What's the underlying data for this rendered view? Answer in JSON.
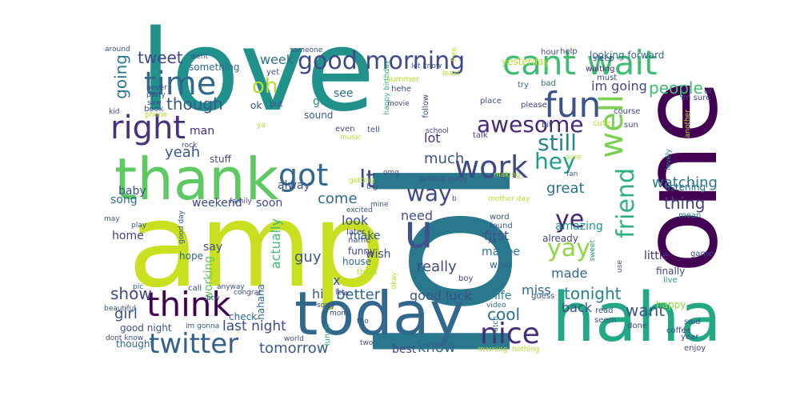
{
  "words": [
    {
      "text": "lol",
      "color": "#2a788e",
      "rot": "v"
    },
    {
      "text": "love",
      "color": "#21918c",
      "rot": "h"
    },
    {
      "text": "amp",
      "color": "#c8e020",
      "rot": "h"
    },
    {
      "text": "one",
      "color": "#440154",
      "rot": "v"
    },
    {
      "text": "haha",
      "color": "#22a884",
      "rot": "h"
    },
    {
      "text": "today",
      "color": "#31688e",
      "rot": "h"
    },
    {
      "text": "thank",
      "color": "#5ec962",
      "rot": "h"
    },
    {
      "text": "cant wait",
      "color": "#3fbc73",
      "rot": "h"
    },
    {
      "text": "u",
      "color": "#3b528b",
      "rot": "h"
    },
    {
      "text": "fun",
      "color": "#3b528b",
      "rot": "h"
    },
    {
      "text": "time",
      "color": "#31688e",
      "rot": "h"
    },
    {
      "text": "right",
      "color": "#46327e",
      "rot": "h"
    },
    {
      "text": "think",
      "color": "#440154",
      "rot": "h"
    },
    {
      "text": "well",
      "color": "#7ad151",
      "rot": "v"
    },
    {
      "text": "work",
      "color": "#3e4989",
      "rot": "h"
    },
    {
      "text": "good morning",
      "color": "#3e4989",
      "rot": "h"
    },
    {
      "text": "got",
      "color": "#31688e",
      "rot": "h"
    },
    {
      "text": "twitter",
      "color": "#355f8d",
      "rot": "h"
    },
    {
      "text": "awesome",
      "color": "#482878",
      "rot": "h"
    },
    {
      "text": "friend",
      "color": "#2db27d",
      "rot": "v"
    },
    {
      "text": "nice",
      "color": "#472d7b",
      "rot": "h"
    },
    {
      "text": "yay",
      "color": "#8fd744",
      "rot": "h"
    },
    {
      "text": "hey",
      "color": "#1f9e89",
      "rot": "h"
    },
    {
      "text": "still",
      "color": "#26828e",
      "rot": "h"
    },
    {
      "text": "way",
      "color": "#3e4989",
      "rot": "h"
    },
    {
      "text": "lt",
      "color": "#3e4989",
      "rot": "h"
    },
    {
      "text": "ye",
      "color": "#482475",
      "rot": "h"
    },
    {
      "text": "oh",
      "color": "#b5de2b",
      "rot": "h"
    },
    {
      "text": "tweet",
      "color": "#3e4989",
      "rot": "h"
    },
    {
      "text": "though",
      "color": "#38598c",
      "rot": "h"
    },
    {
      "text": "people",
      "color": "#3fbc73",
      "rot": "h"
    },
    {
      "text": "going",
      "color": "#2a788e",
      "rot": "v"
    },
    {
      "text": "show",
      "color": "#3e4989",
      "rot": "h"
    },
    {
      "text": "tomorrow",
      "color": "#38598c",
      "rot": "h"
    },
    {
      "text": "last night",
      "color": "#3e4989",
      "rot": "h"
    },
    {
      "text": "cool",
      "color": "#2c718e",
      "rot": "h"
    },
    {
      "text": "tonight",
      "color": "#26828e",
      "rot": "h"
    },
    {
      "text": "know",
      "color": "#31688e",
      "rot": "h"
    },
    {
      "text": "want",
      "color": "#3b528b",
      "rot": "h"
    },
    {
      "text": "great",
      "color": "#2c718e",
      "rot": "h"
    },
    {
      "text": "come",
      "color": "#31688e",
      "rot": "h"
    },
    {
      "text": "guy",
      "color": "#3b528b",
      "rot": "h"
    },
    {
      "text": "thing",
      "color": "#424086",
      "rot": "h"
    },
    {
      "text": "watching",
      "color": "#2a788e",
      "rot": "h"
    },
    {
      "text": "girl",
      "color": "#3b528b",
      "rot": "h"
    },
    {
      "text": "im going",
      "color": "#3e4989",
      "rot": "h"
    },
    {
      "text": "yeah",
      "color": "#38598c",
      "rot": "h"
    },
    {
      "text": "look",
      "color": "#3b528b",
      "rot": "h"
    },
    {
      "text": "need",
      "color": "#3b528b",
      "rot": "h"
    },
    {
      "text": "amazing",
      "color": "#21918c",
      "rot": "h"
    },
    {
      "text": "weekend",
      "color": "#3e4989",
      "rot": "h"
    },
    {
      "text": "good luck",
      "color": "#3b528b",
      "rot": "h"
    },
    {
      "text": "actually",
      "color": "#3fbc73",
      "rot": "v"
    },
    {
      "text": "much",
      "color": "#3b528b",
      "rot": "h"
    },
    {
      "text": "really",
      "color": "#3e4989",
      "rot": "h"
    },
    {
      "text": "better",
      "color": "#31688e",
      "rot": "h"
    },
    {
      "text": "miss",
      "color": "#31688e",
      "rot": "h"
    },
    {
      "text": "made",
      "color": "#31688e",
      "rot": "h"
    },
    {
      "text": "first",
      "color": "#3b528b",
      "rot": "h"
    },
    {
      "text": "maybe",
      "color": "#2a788e",
      "rot": "h"
    },
    {
      "text": "back",
      "color": "#3b528b",
      "rot": "h"
    },
    {
      "text": "little",
      "color": "#46327e",
      "rot": "h"
    },
    {
      "text": "best",
      "color": "#3e4989",
      "rot": "h"
    },
    {
      "text": "wish",
      "color": "#3e4989",
      "rot": "h"
    },
    {
      "text": "week",
      "color": "#2c718e",
      "rot": "h"
    },
    {
      "text": "lot",
      "color": "#472d7b",
      "rot": "h"
    },
    {
      "text": "soon",
      "color": "#3e4989",
      "rot": "h"
    },
    {
      "text": "make",
      "color": "#38598c",
      "rot": "h"
    },
    {
      "text": "life",
      "color": "#26828e",
      "rot": "h"
    },
    {
      "text": "man",
      "color": "#46327e",
      "rot": "h"
    },
    {
      "text": "home",
      "color": "#424086",
      "rot": "h"
    },
    {
      "text": "say",
      "color": "#3b528b",
      "rot": "h"
    },
    {
      "text": "hope",
      "color": "#31688e",
      "rot": "h"
    },
    {
      "text": "working",
      "color": "#5ec962",
      "rot": "v"
    },
    {
      "text": "go",
      "color": "#21918c",
      "rot": "h"
    },
    {
      "text": "see",
      "color": "#2c718e",
      "rot": "h"
    },
    {
      "text": "hi",
      "color": "#3b528b",
      "rot": "h"
    },
    {
      "text": "x",
      "color": "#3b528b",
      "rot": "h"
    },
    {
      "text": "alway",
      "color": "#3b528b",
      "rot": "h"
    },
    {
      "text": "baby",
      "color": "#3b528b",
      "rot": "h"
    },
    {
      "text": "song",
      "color": "#2c718e",
      "rot": "h"
    },
    {
      "text": "ok",
      "color": "#3b528b",
      "rot": "h"
    },
    {
      "text": "sound",
      "color": "#38598c",
      "rot": "h"
    },
    {
      "text": "hahaha",
      "color": "#31688e",
      "rot": "v"
    },
    {
      "text": "stuff",
      "color": "#3e4989",
      "rot": "h"
    },
    {
      "text": "something",
      "color": "#31688e",
      "rot": "h"
    },
    {
      "text": "wow",
      "color": "#31688e",
      "rot": "h"
    },
    {
      "text": "house",
      "color": "#31688e",
      "rot": "h"
    },
    {
      "text": "good night",
      "color": "#3b528b",
      "rot": "h"
    },
    {
      "text": "finally",
      "color": "#3e4989",
      "rot": "h"
    },
    {
      "text": "listening",
      "color": "#2c718e",
      "rot": "h"
    },
    {
      "text": "already",
      "color": "#3e4989",
      "rot": "h"
    },
    {
      "text": "happy",
      "color": "#8fd744",
      "rot": "h"
    },
    {
      "text": "funny",
      "color": "#3e4989",
      "rot": "h"
    },
    {
      "text": "looking forward",
      "color": "#31688e",
      "rot": "h"
    },
    {
      "text": "yesterday",
      "color": "#b5de2b",
      "rot": "h"
    },
    {
      "text": "thought",
      "color": "#31688e",
      "rot": "h"
    },
    {
      "text": "check",
      "color": "#31688e",
      "rot": "h"
    },
    {
      "text": "lunch",
      "color": "#1f9e89",
      "rot": "v"
    },
    {
      "text": "course",
      "color": "#3e4989",
      "rot": "h"
    },
    {
      "text": "game",
      "color": "#3e4989",
      "rot": "h"
    },
    {
      "text": "done",
      "color": "#3e4989",
      "rot": "h"
    },
    {
      "text": "said",
      "color": "#3e4989",
      "rot": "h"
    },
    {
      "text": "year",
      "color": "#3e4989",
      "rot": "h"
    },
    {
      "text": "coffee",
      "color": "#3e4989",
      "rot": "h"
    },
    {
      "text": "enjoy",
      "color": "#3e4989",
      "rot": "h"
    },
    {
      "text": "live",
      "color": "#21918c",
      "rot": "h"
    },
    {
      "text": "mean",
      "color": "#21918c",
      "rot": "h"
    },
    {
      "text": "lovely",
      "color": "#21918c",
      "rot": "v"
    },
    {
      "text": "sweet",
      "color": "#21918c",
      "rot": "v"
    },
    {
      "text": "use",
      "color": "#3b528b",
      "rot": "v"
    },
    {
      "text": "cute",
      "color": "#b5de2b",
      "rot": "h"
    },
    {
      "text": "sun",
      "color": "#3b528b",
      "rot": "h"
    },
    {
      "text": "sure",
      "color": "#b5de2b",
      "rot": "h"
    },
    {
      "text": "fan",
      "color": "#3b528b",
      "rot": "h"
    },
    {
      "text": "must",
      "color": "#3e4989",
      "rot": "h"
    },
    {
      "text": "waiting",
      "color": "#482475",
      "rot": "h"
    },
    {
      "text": "sleep",
      "color": "#3e4989",
      "rot": "h"
    },
    {
      "text": "hour",
      "color": "#3e4989",
      "rot": "h"
    },
    {
      "text": "help",
      "color": "#3e4989",
      "rot": "h"
    },
    {
      "text": "bad",
      "color": "#31688e",
      "rot": "h"
    },
    {
      "text": "try",
      "color": "#31688e",
      "rot": "h"
    },
    {
      "text": "please",
      "color": "#3e4989",
      "rot": "h"
    },
    {
      "text": "place",
      "color": "#3e4989",
      "rot": "h"
    },
    {
      "text": "bit",
      "color": "#3b528b",
      "rot": "h"
    },
    {
      "text": "talk",
      "color": "#424086",
      "rot": "h"
    },
    {
      "text": "im sure",
      "color": "#3e4989",
      "rot": "h"
    },
    {
      "text": "another",
      "color": "#b5de2b",
      "rot": "v"
    },
    {
      "text": "ur",
      "color": "#3e4989",
      "rot": "h"
    },
    {
      "text": "guess",
      "color": "#3b528b",
      "rot": "h"
    },
    {
      "text": "read",
      "color": "#3b528b",
      "rot": "h"
    },
    {
      "text": "seem",
      "color": "#3b528b",
      "rot": "h"
    },
    {
      "text": "video",
      "color": "#2c718e",
      "rot": "h"
    },
    {
      "text": "watch",
      "color": "#2c718e",
      "rot": "v"
    },
    {
      "text": "word",
      "color": "#3b528b",
      "rot": "h"
    },
    {
      "text": "found",
      "color": "#3b528b",
      "rot": "h"
    },
    {
      "text": "xx",
      "color": "#3b528b",
      "rot": "h"
    },
    {
      "text": "morning",
      "color": "#b5de2b",
      "rot": "h"
    },
    {
      "text": "nothing",
      "color": "#b5de2b",
      "rot": "h"
    },
    {
      "text": "boy",
      "color": "#3e4989",
      "rot": "h"
    },
    {
      "text": "thats",
      "color": "#b5de2b",
      "rot": "h"
    },
    {
      "text": "okay",
      "color": "#b5de2b",
      "rot": "v"
    },
    {
      "text": "later",
      "color": "#3e4989",
      "rot": "h"
    },
    {
      "text": "name",
      "color": "#3b528b",
      "rot": "h"
    },
    {
      "text": "excited",
      "color": "#3b528b",
      "rot": "h"
    },
    {
      "text": "mine",
      "color": "#3b528b",
      "rot": "h"
    },
    {
      "text": "mother day",
      "color": "#b5de2b",
      "rot": "h"
    },
    {
      "text": "making",
      "color": "#b5de2b",
      "rot": "h"
    },
    {
      "text": "big",
      "color": "#3b528b",
      "rot": "h"
    },
    {
      "text": "omg",
      "color": "#3e4989",
      "rot": "h"
    },
    {
      "text": "getting ready",
      "color": "#3b528b",
      "rot": "h"
    },
    {
      "text": "getting",
      "color": "#b5de2b",
      "rot": "h"
    },
    {
      "text": "music",
      "color": "#b5de2b",
      "rot": "h"
    },
    {
      "text": "even",
      "color": "#3e4989",
      "rot": "h"
    },
    {
      "text": "tell",
      "color": "#3e4989",
      "rot": "h"
    },
    {
      "text": "school",
      "color": "#3e4989",
      "rot": "h"
    },
    {
      "text": "follow",
      "color": "#3e4989",
      "rot": "v"
    },
    {
      "text": "happy birthday",
      "color": "#2db27d",
      "rot": "v"
    },
    {
      "text": "hehe",
      "color": "#3e4989",
      "rot": "h"
    },
    {
      "text": "movie",
      "color": "#3e4989",
      "rot": "h"
    },
    {
      "text": "summer",
      "color": "#b5de2b",
      "rot": "h"
    },
    {
      "text": "let know",
      "color": "#3b528b",
      "rot": "h"
    },
    {
      "text": "least",
      "color": "#b5de2b",
      "rot": "h"
    },
    {
      "text": "free",
      "color": "#b5de2b",
      "rot": "v"
    },
    {
      "text": "someone",
      "color": "#3e4989",
      "rot": "h"
    },
    {
      "text": "yet",
      "color": "#3b528b",
      "rot": "h"
    },
    {
      "text": "put",
      "color": "#3b528b",
      "rot": "h"
    },
    {
      "text": "ya",
      "color": "#b5de2b",
      "rot": "h"
    },
    {
      "text": "went",
      "color": "#3b528b",
      "rot": "h"
    },
    {
      "text": "around",
      "color": "#3b528b",
      "rot": "h"
    },
    {
      "text": "never",
      "color": "#3e4989",
      "rot": "h"
    },
    {
      "text": "party",
      "color": "#3e4989",
      "rot": "h"
    },
    {
      "text": "book",
      "color": "#3e4989",
      "rot": "h"
    },
    {
      "text": "kid",
      "color": "#3e4989",
      "rot": "h"
    },
    {
      "text": "phone",
      "color": "#b5de2b",
      "rot": "h"
    },
    {
      "text": "saw",
      "color": "#3e4989",
      "rot": "h"
    },
    {
      "text": "rock",
      "color": "#3e4989",
      "rot": "h"
    },
    {
      "text": "family",
      "color": "#3e4989",
      "rot": "h"
    },
    {
      "text": "good day",
      "color": "#3b528b",
      "rot": "v"
    },
    {
      "text": "play",
      "color": "#3b528b",
      "rot": "h"
    },
    {
      "text": "may",
      "color": "#3b528b",
      "rot": "h"
    },
    {
      "text": "pic",
      "color": "#3b528b",
      "rot": "h"
    },
    {
      "text": "beautiful",
      "color": "#3b528b",
      "rot": "h"
    },
    {
      "text": "call",
      "color": "#3b528b",
      "rot": "h"
    },
    {
      "text": "btw",
      "color": "#3b528b",
      "rot": "h"
    },
    {
      "text": "anyway",
      "color": "#3e4989",
      "rot": "h"
    },
    {
      "text": "congrat",
      "color": "#3e4989",
      "rot": "h"
    },
    {
      "text": "im gonna",
      "color": "#3b528b",
      "rot": "h"
    },
    {
      "text": "dont know",
      "color": "#3e4989",
      "rot": "h"
    },
    {
      "text": "sorry",
      "color": "#3e4989",
      "rot": "h"
    },
    {
      "text": "let",
      "color": "#3e4989",
      "rot": "h"
    },
    {
      "text": "w",
      "color": "#3e4989",
      "rot": "h"
    },
    {
      "text": "mom",
      "color": "#3e4989",
      "rot": "h"
    },
    {
      "text": "world",
      "color": "#3e4989",
      "rot": "h"
    },
    {
      "text": "two",
      "color": "#3e4989",
      "rot": "h"
    },
    {
      "text": "tho",
      "color": "#3e4989",
      "rot": "h"
    },
    {
      "text": "b",
      "color": "#3e4989",
      "rot": "h"
    }
  ]
}
